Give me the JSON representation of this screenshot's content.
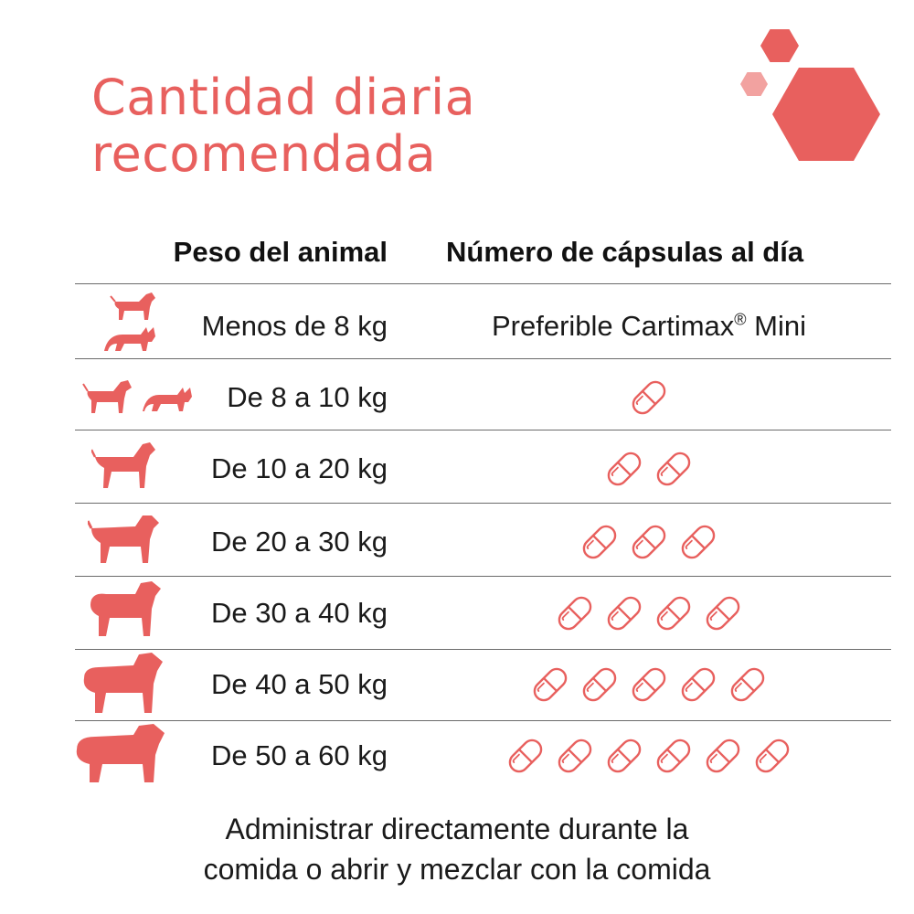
{
  "title": {
    "line1": "Cantidad diaria",
    "line2": "recomendada"
  },
  "colors": {
    "accent": "#e8605e",
    "accent_light": "#f2a2a0",
    "text": "#1a1a1a",
    "rule": "#6b6b6b"
  },
  "table": {
    "headers": {
      "weight": "Peso del animal",
      "capsules": "Número de cápsulas al día"
    },
    "rows": [
      {
        "weight": "Menos de 8 kg",
        "dose_text": "Preferible Cartimax",
        "dose_mark": "®",
        "dose_suffix": " Mini",
        "capsules": 0,
        "icons": [
          "small-dog-icon",
          "cat-icon"
        ]
      },
      {
        "weight": "De 8 a 10 kg",
        "capsules": 1,
        "icons": [
          "small-dog-icon",
          "cat-icon"
        ]
      },
      {
        "weight": "De 10 a 20 kg",
        "capsules": 2,
        "icons": [
          "medium-dog-icon"
        ]
      },
      {
        "weight": "De 20 a 30 kg",
        "capsules": 3,
        "icons": [
          "dog-icon"
        ]
      },
      {
        "weight": "De 30 a 40 kg",
        "capsules": 4,
        "icons": [
          "large-dog-icon"
        ]
      },
      {
        "weight": "De 40 a 50 kg",
        "capsules": 5,
        "icons": [
          "large-dog-icon"
        ]
      },
      {
        "weight": "De 50 a 60 kg",
        "capsules": 6,
        "icons": [
          "giant-dog-icon"
        ]
      }
    ]
  },
  "footer": {
    "line1": "Administrar directamente durante la",
    "line2": "comida o abrir y mezclar con la comida"
  },
  "decor": {
    "icons": [
      "hexagon-large-icon",
      "hexagon-small-icon",
      "hexagon-light-icon"
    ]
  }
}
